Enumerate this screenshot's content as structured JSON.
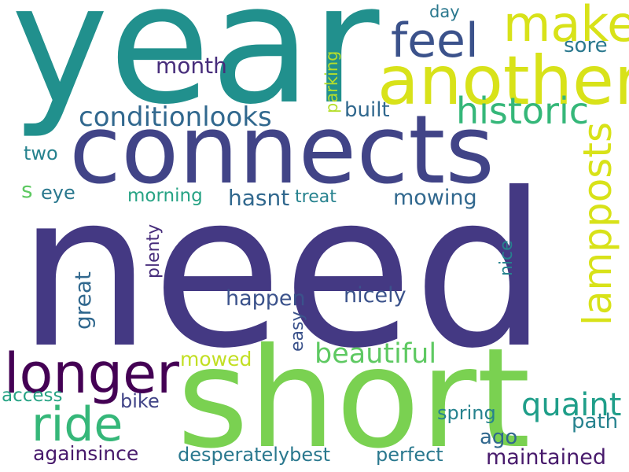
{
  "words": [
    {
      "id": "year",
      "text": "year",
      "color": "#21908d"
    },
    {
      "id": "need",
      "text": "need",
      "color": "#443983"
    },
    {
      "id": "short",
      "text": "short",
      "color": "#7ad151"
    },
    {
      "id": "connects",
      "text": "connects",
      "color": "#414487"
    },
    {
      "id": "another",
      "text": "another",
      "color": "#d8e219"
    },
    {
      "id": "make",
      "text": "make",
      "color": "#d8e219"
    },
    {
      "id": "feel",
      "text": "feel",
      "color": "#3b528b"
    },
    {
      "id": "lampposts",
      "text": "lampposts",
      "color": "#d8e219"
    },
    {
      "id": "historic",
      "text": "historic",
      "color": "#35b779"
    },
    {
      "id": "conditionlooks",
      "text": "conditionlooks",
      "color": "#31688e"
    },
    {
      "id": "longer",
      "text": "longer",
      "color": "#440154"
    },
    {
      "id": "ride",
      "text": "ride",
      "color": "#35b779"
    },
    {
      "id": "beautiful",
      "text": "beautiful",
      "color": "#5ec962"
    },
    {
      "id": "quaint",
      "text": "quaint",
      "color": "#1f9e89"
    },
    {
      "id": "great",
      "text": "great",
      "color": "#31688e"
    },
    {
      "id": "month",
      "text": "month",
      "color": "#472d7b"
    },
    {
      "id": "sore",
      "text": "sore",
      "color": "#2a788e"
    },
    {
      "id": "day",
      "text": "day",
      "color": "#2a788e"
    },
    {
      "id": "parking",
      "text": "parking",
      "color": "#b5de2b"
    },
    {
      "id": "built",
      "text": "built",
      "color": "#31688e"
    },
    {
      "id": "two",
      "text": "two",
      "color": "#26828e"
    },
    {
      "id": "s",
      "text": "s",
      "color": "#5ec962"
    },
    {
      "id": "eye",
      "text": "eye",
      "color": "#2a788e"
    },
    {
      "id": "morning",
      "text": "morning",
      "color": "#26a384"
    },
    {
      "id": "hasnt",
      "text": "hasnt",
      "color": "#31688e"
    },
    {
      "id": "treat",
      "text": "treat",
      "color": "#26828e"
    },
    {
      "id": "mowing",
      "text": "mowing",
      "color": "#31688e"
    },
    {
      "id": "plenty",
      "text": "plenty",
      "color": "#472d7b"
    },
    {
      "id": "nice",
      "text": "nice",
      "color": "#26828e"
    },
    {
      "id": "happen",
      "text": "happen",
      "color": "#3b528b"
    },
    {
      "id": "nicely",
      "text": "nicely",
      "color": "#3b528b"
    },
    {
      "id": "easy",
      "text": "easy",
      "color": "#3b528b"
    },
    {
      "id": "mowed",
      "text": "mowed",
      "color": "#c2df23"
    },
    {
      "id": "access",
      "text": "access",
      "color": "#26a384"
    },
    {
      "id": "bike",
      "text": "bike",
      "color": "#414487"
    },
    {
      "id": "spring",
      "text": "spring",
      "color": "#26828e"
    },
    {
      "id": "ago",
      "text": "ago",
      "color": "#31688e"
    },
    {
      "id": "path",
      "text": "path",
      "color": "#26828e"
    },
    {
      "id": "againsince",
      "text": "againsince",
      "color": "#481a6c"
    },
    {
      "id": "desperatelybest",
      "text": "desperatelybest",
      "color": "#2a788e"
    },
    {
      "id": "perfect",
      "text": "perfect",
      "color": "#2a788e"
    },
    {
      "id": "maintained",
      "text": "maintained",
      "color": "#481a6c"
    }
  ]
}
